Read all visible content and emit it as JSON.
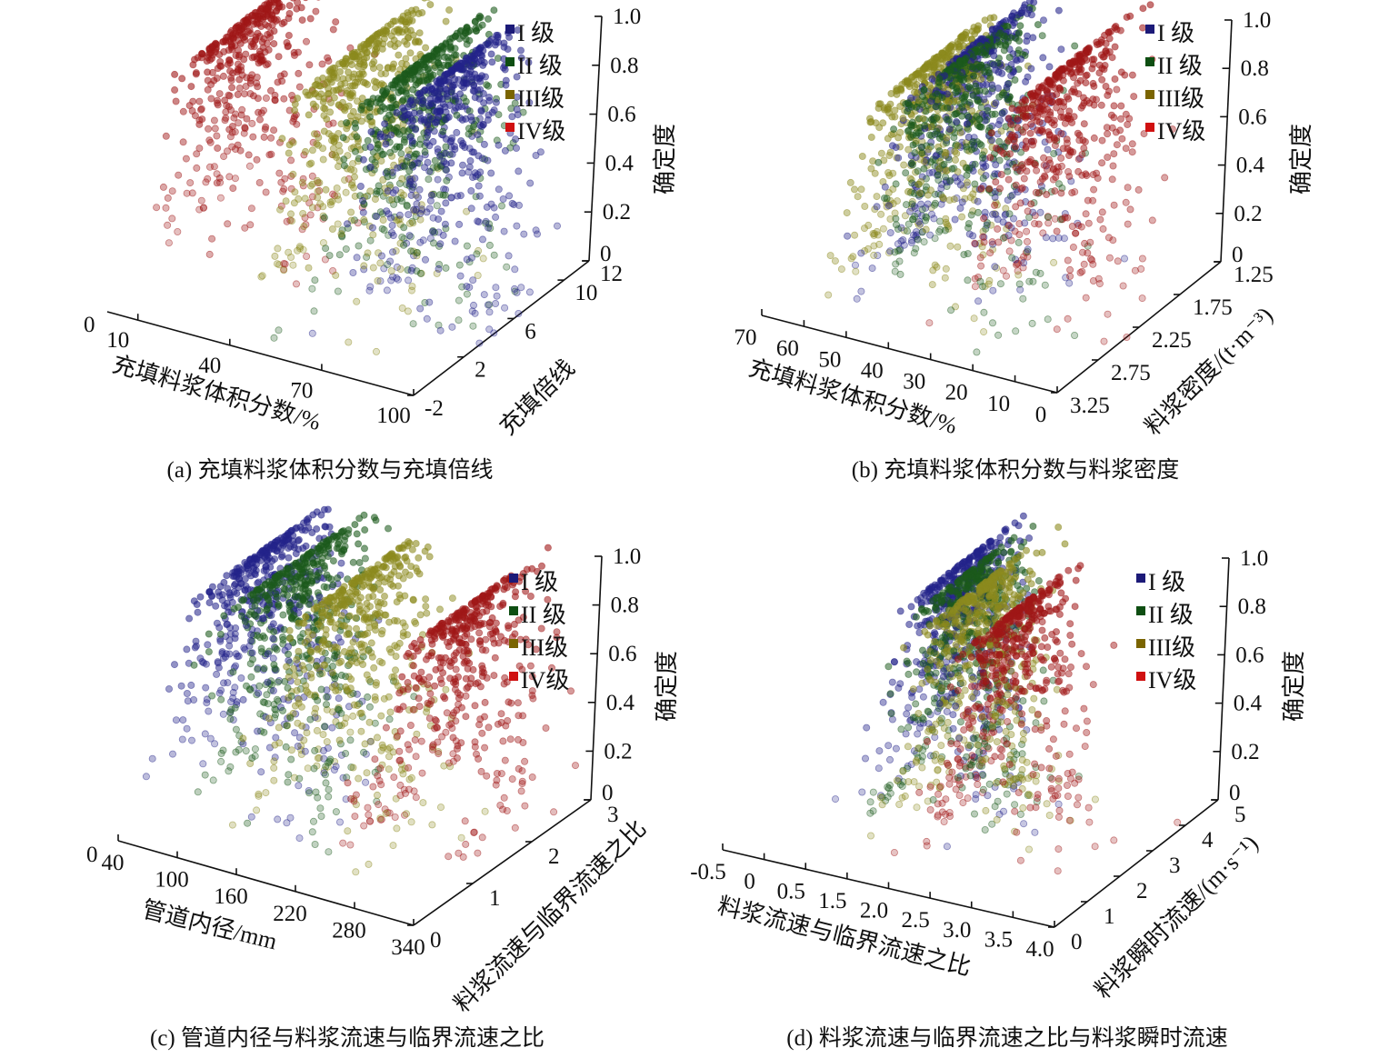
{
  "chart_data": [
    {
      "type": "scatter",
      "subtype": "3d-cloud-model",
      "caption": "(a)  充填料浆体积分数与充填倍线",
      "xlabel": "充填料浆体积分数/%",
      "ylabel": "充填倍线",
      "zlabel": "确定度",
      "corner_label": "0",
      "xlim": [
        0,
        100
      ],
      "ylim": [
        -2,
        12
      ],
      "zlim": [
        0,
        1
      ],
      "x_ticks": [
        "10",
        "40",
        "70",
        "100"
      ],
      "y_ticks": [
        "-2",
        "2",
        "6",
        "10",
        "12"
      ],
      "z_ticks": [
        "0",
        "0.2",
        "0.4",
        "0.6",
        "0.8",
        "1.0"
      ],
      "legend_position": "top-right",
      "series": [
        {
          "name": "I 级",
          "color": "#23238a",
          "legend_color": "#1c1a78",
          "Ex": 81,
          "En": 8,
          "depth_center": 5,
          "depth_sd": 2.4
        },
        {
          "name": "II 级",
          "color": "#1c5a1c",
          "legend_color": "#0e4e12",
          "Ex": 71,
          "En": 8,
          "depth_center": 5,
          "depth_sd": 2.4
        },
        {
          "name": "III级",
          "color": "#8c8a1e",
          "legend_color": "#7a6400",
          "Ex": 52,
          "En": 8,
          "depth_center": 5,
          "depth_sd": 2.4
        },
        {
          "name": "IV级",
          "color": "#a01818",
          "legend_color": "#d01010",
          "Ex": 16,
          "En": 9,
          "depth_center": 5,
          "depth_sd": 2.4
        }
      ]
    },
    {
      "type": "scatter",
      "subtype": "3d-cloud-model",
      "caption": "(b)  充填料浆体积分数与料浆密度",
      "xlabel": "充填料浆体积分数/%",
      "ylabel": "料浆密度/(t·m⁻³)",
      "zlabel": "确定度",
      "xlim": [
        70,
        0
      ],
      "ylim": [
        3.25,
        1.25
      ],
      "zlim": [
        0,
        1
      ],
      "x_ticks": [
        "70",
        "60",
        "50",
        "40",
        "30",
        "20",
        "10",
        "0"
      ],
      "y_ticks": [
        "3.25",
        "2.75",
        "2.25",
        "1.75",
        "1.25"
      ],
      "z_ticks": [
        "0",
        "0.2",
        "0.4",
        "0.6",
        "0.8",
        "1.0"
      ],
      "legend_position": "top-right",
      "series": [
        {
          "name": "I 级",
          "color": "#23238a",
          "legend_color": "#1c1a78",
          "Ex": 40,
          "En": 7,
          "depth_center": 2.25,
          "depth_sd": 0.35
        },
        {
          "name": "II 级",
          "color": "#1c5a1c",
          "legend_color": "#0e4e12",
          "Ex": 39,
          "En": 6.5,
          "depth_center": 2.4,
          "depth_sd": 0.35
        },
        {
          "name": "III级",
          "color": "#8c8a1e",
          "legend_color": "#7a6400",
          "Ex": 44,
          "En": 6.5,
          "depth_center": 2.55,
          "depth_sd": 0.35
        },
        {
          "name": "IV级",
          "color": "#a01818",
          "legend_color": "#d01010",
          "Ex": 19,
          "En": 6,
          "depth_center": 2.25,
          "depth_sd": 0.35
        }
      ]
    },
    {
      "type": "scatter",
      "subtype": "3d-cloud-model",
      "caption": "(c)  管道内径与料浆流速与临界流速之比",
      "xlabel": "管道内径/mm",
      "ylabel": "料浆流速与临界流速之比",
      "zlabel": "确定度",
      "corner_label": "0",
      "xlim": [
        40,
        340
      ],
      "ylim": [
        0,
        3
      ],
      "zlim": [
        0,
        1
      ],
      "x_ticks": [
        "40",
        "100",
        "160",
        "220",
        "280",
        "340"
      ],
      "y_ticks": [
        "0",
        "1",
        "2",
        "3"
      ],
      "z_ticks": [
        "0",
        "0.2",
        "0.4",
        "0.6",
        "0.8",
        "1.0"
      ],
      "legend_position": "top-right",
      "series": [
        {
          "name": "I 级",
          "color": "#23238a",
          "legend_color": "#1c1a78",
          "Ex": 91,
          "En": 30,
          "depth_center": 1.5,
          "depth_sd": 0.5
        },
        {
          "name": "II 级",
          "color": "#1c5a1c",
          "legend_color": "#0e4e12",
          "Ex": 127,
          "En": 28,
          "depth_center": 1.5,
          "depth_sd": 0.5
        },
        {
          "name": "III级",
          "color": "#8c8a1e",
          "legend_color": "#7a6400",
          "Ex": 187,
          "En": 28,
          "depth_center": 1.5,
          "depth_sd": 0.5
        },
        {
          "name": "IV级",
          "color": "#a01818",
          "legend_color": "#d01010",
          "Ex": 296,
          "En": 32,
          "depth_center": 1.5,
          "depth_sd": 0.5
        }
      ]
    },
    {
      "type": "scatter",
      "subtype": "3d-cloud-model",
      "caption": "(d)  料浆流速与临界流速之比与料浆瞬时流速",
      "xlabel": "料浆流速与临界流速之比",
      "ylabel": "料浆瞬时流速/(m·s⁻¹)",
      "zlabel": "确定度",
      "xlim": [
        -0.5,
        4.0
      ],
      "ylim": [
        0,
        5
      ],
      "zlim": [
        0,
        1
      ],
      "x_ticks": [
        "-0.5",
        "0",
        "0.5",
        "1.5",
        "2.0",
        "2.5",
        "3.0",
        "3.5",
        "4.0"
      ],
      "y_ticks": [
        "0",
        "1",
        "2",
        "3",
        "4",
        "5"
      ],
      "z_ticks": [
        "0",
        "0.2",
        "0.4",
        "0.6",
        "0.8",
        "1.0"
      ],
      "legend_position": "top-right",
      "series": [
        {
          "name": "I 级",
          "color": "#23238a",
          "legend_color": "#1c1a78",
          "Ex": 1.3,
          "En": 0.33,
          "depth_center": 3.0,
          "depth_sd": 0.7
        },
        {
          "name": "II 级",
          "color": "#1c5a1c",
          "legend_color": "#0e4e12",
          "Ex": 1.5,
          "En": 0.33,
          "depth_center": 2.8,
          "depth_sd": 0.7
        },
        {
          "name": "III级",
          "color": "#8c8a1e",
          "legend_color": "#7a6400",
          "Ex": 1.8,
          "En": 0.33,
          "depth_center": 2.5,
          "depth_sd": 0.7
        },
        {
          "name": "IV级",
          "color": "#a01818",
          "legend_color": "#d01010",
          "Ex": 2.5,
          "En": 0.38,
          "depth_center": 2.0,
          "depth_sd": 0.7
        }
      ]
    }
  ]
}
